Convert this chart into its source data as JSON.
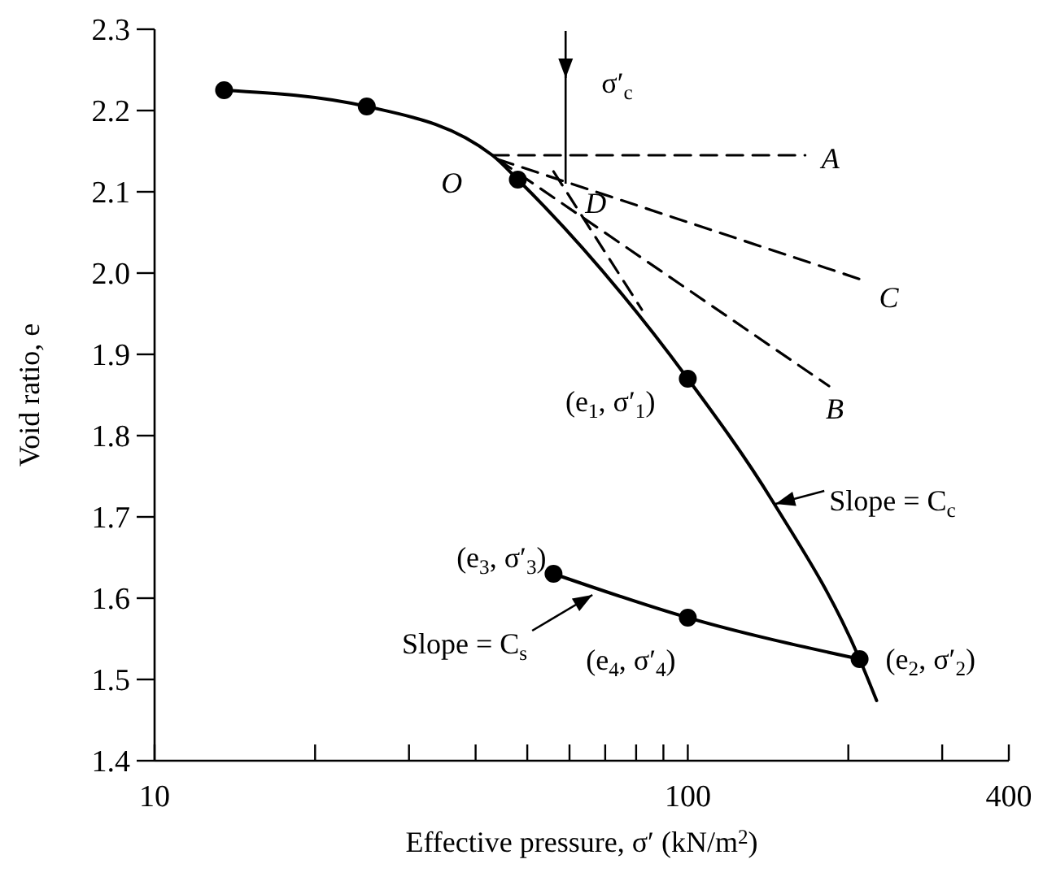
{
  "chart_data": {
    "type": "line",
    "xlabel": "Effective pressure, σ′ (kN/m$^{2}$)",
    "ylabel": "Void ratio, e",
    "log": "x",
    "xlim": [
      10,
      400
    ],
    "ylim": [
      1.4,
      2.3
    ],
    "xticks": [
      10,
      {
        "value": 20,
        "label": null
      },
      {
        "value": 30,
        "label": null
      },
      {
        "value": 40,
        "label": null
      },
      {
        "value": 50,
        "label": null
      },
      {
        "value": 60,
        "label": null
      },
      {
        "value": 70,
        "label": null
      },
      {
        "value": 80,
        "label": null
      },
      {
        "value": 90,
        "label": null
      },
      100,
      {
        "value": 200,
        "label": null
      },
      {
        "value": 300,
        "label": null
      },
      400
    ],
    "yticks": [
      1.4,
      1.5,
      1.6,
      1.7,
      1.8,
      1.9,
      {
        "value": 2,
        "label": "2.0"
      },
      2.1,
      2.2,
      2.3
    ],
    "grid": false,
    "series": [
      {
        "color": "#000000",
        "marker": "none",
        "line_style": "solid",
        "x": [
          13.5,
          25,
          43,
          48,
          100,
          144,
          210,
          226
        ],
        "values": [
          2.225,
          2.205,
          2.145,
          2.115,
          1.87,
          1.72,
          1.525,
          1.474
        ]
      },
      {
        "color": "#000000",
        "marker": "none",
        "line_style": "solid",
        "x": [
          56,
          100,
          210
        ],
        "values": [
          1.63,
          1.576,
          1.525
        ]
      },
      {
        "type": "scatter",
        "color": "#000000",
        "marker": "circle",
        "x": [
          13.5,
          25,
          48,
          100,
          210,
          56,
          100
        ],
        "values": [
          2.225,
          2.205,
          2.115,
          1.87,
          1.525,
          1.63,
          1.576
        ]
      },
      {
        "type": "line",
        "color": "#000000",
        "marker": "none",
        "line_style": "dashed",
        "x": [
          43,
          166
        ],
        "values": [
          2.145,
          2.145
        ]
      },
      {
        "type": "line",
        "color": "#000000",
        "marker": "none",
        "line_style": "dashed",
        "x": [
          44,
          216
        ],
        "values": [
          2.14,
          1.99
        ]
      },
      {
        "type": "line",
        "color": "#000000",
        "marker": "none",
        "line_style": "dashed",
        "x": [
          44,
          184
        ],
        "values": [
          2.14,
          1.861
        ]
      },
      {
        "type": "line",
        "color": "#000000",
        "marker": "none",
        "line_style": "dashed",
        "x": [
          56,
          82
        ],
        "values": [
          2.125,
          1.955
        ]
      }
    ],
    "annotations": [
      {
        "text": "σ′$_{c}$",
        "x": 59,
        "y": 2.11
      },
      {
        "text": "O",
        "x": 43,
        "y": 2.145
      },
      {
        "text": "D",
        "x": 59,
        "y": 2.11
      },
      {
        "text": "A",
        "x": 166,
        "y": 2.145
      },
      {
        "text": "C",
        "x": 216,
        "y": 1.99
      },
      {
        "text": "B",
        "x": 184,
        "y": 1.861
      },
      {
        "text": "(e$_{1}$, σ′$_{1}$)",
        "x": 100,
        "y": 1.87
      },
      {
        "text": "Slope = C$_{c}$",
        "x": 144,
        "y": 1.72
      },
      {
        "text": "(e$_{3}$, σ′$_{3}$)",
        "x": 56,
        "y": 1.63
      },
      {
        "text": "Slope = C$_{s}$",
        "x": 66.7,
        "y": 1.61
      },
      {
        "text": "(e$_{4}$, σ′$_{4}$)",
        "x": 100,
        "y": 1.576
      },
      {
        "text": "(e$_{2}$, σ′$_{2}$)",
        "x": 210,
        "y": 1.525
      }
    ]
  }
}
